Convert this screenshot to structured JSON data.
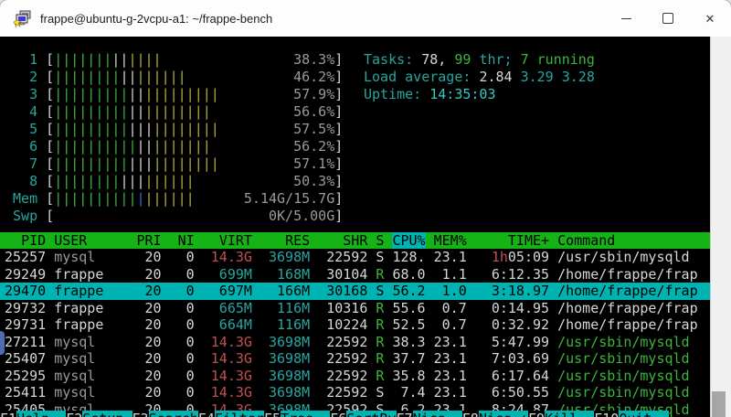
{
  "window": {
    "title": "frappe@ubuntu-g-2vcpu-a1: ~/frappe-bench",
    "controls": {
      "minimize": "minimize",
      "maximize": "maximize",
      "close": "✕"
    }
  },
  "colors": {
    "header_bg": "#16b316",
    "sort_bg": "#00b3b3",
    "highlight_bg": "#00b3b3",
    "cyan_text": "#27a5a0",
    "green_text": "#3cb43c",
    "red_text": "#c05050",
    "bar_green": "#2e9b2e",
    "bar_red": "#c23b3b",
    "bar_yellow": "#b3ad3d",
    "bar_blue": "#4169e1"
  },
  "htop": {
    "meters": [
      {
        "label": "1",
        "bar": [
          [
            "g",
            7
          ],
          [
            "r",
            2
          ],
          [
            "y",
            4
          ]
        ],
        "value": "38.3%"
      },
      {
        "label": "2",
        "bar": [
          [
            "g",
            8
          ],
          [
            "r",
            2
          ],
          [
            "y",
            6
          ]
        ],
        "value": "46.2%"
      },
      {
        "label": "3",
        "bar": [
          [
            "g",
            9
          ],
          [
            "r",
            2
          ],
          [
            "y",
            9
          ]
        ],
        "value": "57.9%"
      },
      {
        "label": "4",
        "bar": [
          [
            "g",
            9
          ],
          [
            "r",
            2
          ],
          [
            "y",
            8
          ]
        ],
        "value": "56.6%"
      },
      {
        "label": "5",
        "bar": [
          [
            "g",
            9
          ],
          [
            "r",
            3
          ],
          [
            "y",
            8
          ]
        ],
        "value": "57.5%"
      },
      {
        "label": "6",
        "bar": [
          [
            "g",
            10
          ],
          [
            "r",
            2
          ],
          [
            "y",
            7
          ]
        ],
        "value": "56.2%"
      },
      {
        "label": "7",
        "bar": [
          [
            "g",
            9
          ],
          [
            "r",
            3
          ],
          [
            "y",
            8
          ]
        ],
        "value": "57.1%"
      },
      {
        "label": "8",
        "bar": [
          [
            "g",
            8
          ],
          [
            "r",
            3
          ],
          [
            "y",
            6
          ]
        ],
        "value": "50.3%"
      },
      {
        "label": "Mem",
        "bar": [
          [
            "g",
            10
          ],
          [
            "bl",
            1
          ],
          [
            "y",
            6
          ]
        ],
        "value": "5.14G/15.7G"
      },
      {
        "label": "Swp",
        "bar": [],
        "value": "0K/5.00G"
      }
    ],
    "info": [
      [
        {
          "t": "Tasks: ",
          "c": "cy"
        },
        {
          "t": "78, ",
          "c": "w"
        },
        {
          "t": "99 ",
          "c": "g"
        },
        {
          "t": "thr",
          "c": "cy"
        },
        {
          "t": "; ",
          "c": "cy"
        },
        {
          "t": "7 running",
          "c": "g"
        }
      ],
      [
        {
          "t": "Load average: ",
          "c": "cy"
        },
        {
          "t": "2.84 ",
          "c": "w"
        },
        {
          "t": "3.29 ",
          "c": "cy"
        },
        {
          "t": "3.28",
          "c": "cy"
        }
      ],
      [
        {
          "t": "Uptime: ",
          "c": "cy"
        },
        {
          "t": "14:35:03",
          "c": "cyb"
        }
      ]
    ],
    "table": {
      "columns": [
        {
          "key": "pid",
          "label": "PID",
          "w": 5,
          "a": "r",
          "gap": 0
        },
        {
          "key": "user",
          "label": "USER",
          "w": 10,
          "a": "l",
          "gap": 1
        },
        {
          "key": "pri",
          "label": "PRI",
          "w": 3,
          "a": "r",
          "gap": 0
        },
        {
          "key": "ni",
          "label": "NI",
          "w": 4,
          "a": "r",
          "gap": 0
        },
        {
          "key": "virt",
          "label": "VIRT",
          "w": 7,
          "a": "r",
          "gap": 0
        },
        {
          "key": "res",
          "label": "RES",
          "w": 7,
          "a": "r",
          "gap": 0
        },
        {
          "key": "shr",
          "label": "SHR",
          "w": 7,
          "a": "r",
          "gap": 0
        },
        {
          "key": "s",
          "label": "S",
          "w": 2,
          "a": "r",
          "gap": 0
        },
        {
          "key": "cpu",
          "label": "CPU%",
          "w": 5,
          "a": "r",
          "gap": 0,
          "sort": true
        },
        {
          "key": "mem",
          "label": "MEM%",
          "w": 5,
          "a": "r",
          "gap": 0
        },
        {
          "key": "time",
          "label": "TIME+",
          "w": 10,
          "a": "r",
          "gap": 0
        },
        {
          "key": "cmd",
          "label": "Command",
          "w": 0,
          "a": "l",
          "gap": 1
        }
      ],
      "rows": [
        {
          "hl": false,
          "cells": [
            {
              "v": "25257",
              "c": "w"
            },
            {
              "v": "mysql",
              "c": "dim"
            },
            {
              "v": "20",
              "c": "w"
            },
            {
              "v": "0",
              "c": "w"
            },
            {
              "v": "14.3G",
              "c": "red"
            },
            {
              "v": "3698M",
              "c": "cy"
            },
            {
              "v": "22592",
              "c": "w"
            },
            {
              "v": "S",
              "c": "w"
            },
            {
              "v": "128.",
              "c": "w"
            },
            {
              "v": "23.1",
              "c": "w"
            },
            {
              "v": "05:09",
              "c": "w",
              "pre": "1h",
              "prec": "red"
            },
            {
              "v": "/usr/sbin/mysqld",
              "c": "w"
            }
          ]
        },
        {
          "hl": false,
          "cells": [
            {
              "v": "29249",
              "c": "w"
            },
            {
              "v": "frappe",
              "c": "w"
            },
            {
              "v": "20",
              "c": "w"
            },
            {
              "v": "0",
              "c": "w"
            },
            {
              "v": "699M",
              "c": "cy"
            },
            {
              "v": "168M",
              "c": "cy"
            },
            {
              "v": "30104",
              "c": "w"
            },
            {
              "v": "R",
              "c": "g"
            },
            {
              "v": "68.0",
              "c": "w"
            },
            {
              "v": "1.1",
              "c": "w"
            },
            {
              "v": "6:12.35",
              "c": "w"
            },
            {
              "v": "/home/frappe/frap",
              "c": "w"
            }
          ]
        },
        {
          "hl": true,
          "cells": [
            {
              "v": "29470",
              "c": "w"
            },
            {
              "v": "frappe",
              "c": "w"
            },
            {
              "v": "20",
              "c": "w"
            },
            {
              "v": "0",
              "c": "w"
            },
            {
              "v": "697M",
              "c": "w"
            },
            {
              "v": "166M",
              "c": "w"
            },
            {
              "v": "30168",
              "c": "w"
            },
            {
              "v": "S",
              "c": "w"
            },
            {
              "v": "56.2",
              "c": "w"
            },
            {
              "v": "1.0",
              "c": "w"
            },
            {
              "v": "3:18.97",
              "c": "w"
            },
            {
              "v": "/home/frappe/frap",
              "c": "w"
            }
          ]
        },
        {
          "hl": false,
          "cells": [
            {
              "v": "29732",
              "c": "w"
            },
            {
              "v": "frappe",
              "c": "w"
            },
            {
              "v": "20",
              "c": "w"
            },
            {
              "v": "0",
              "c": "w"
            },
            {
              "v": "665M",
              "c": "cy"
            },
            {
              "v": "116M",
              "c": "cy"
            },
            {
              "v": "10316",
              "c": "w"
            },
            {
              "v": "R",
              "c": "g"
            },
            {
              "v": "55.6",
              "c": "w"
            },
            {
              "v": "0.7",
              "c": "w"
            },
            {
              "v": "0:14.95",
              "c": "w"
            },
            {
              "v": "/home/frappe/frap",
              "c": "w"
            }
          ]
        },
        {
          "hl": false,
          "cells": [
            {
              "v": "29731",
              "c": "w"
            },
            {
              "v": "frappe",
              "c": "w"
            },
            {
              "v": "20",
              "c": "w"
            },
            {
              "v": "0",
              "c": "w"
            },
            {
              "v": "664M",
              "c": "cy"
            },
            {
              "v": "116M",
              "c": "cy"
            },
            {
              "v": "10224",
              "c": "w"
            },
            {
              "v": "R",
              "c": "g"
            },
            {
              "v": "52.5",
              "c": "w"
            },
            {
              "v": "0.7",
              "c": "w"
            },
            {
              "v": "0:32.92",
              "c": "w"
            },
            {
              "v": "/home/frappe/frap",
              "c": "w"
            }
          ]
        },
        {
          "hl": false,
          "cells": [
            {
              "v": "27211",
              "c": "w"
            },
            {
              "v": "mysql",
              "c": "dim"
            },
            {
              "v": "20",
              "c": "w"
            },
            {
              "v": "0",
              "c": "w"
            },
            {
              "v": "14.3G",
              "c": "red"
            },
            {
              "v": "3698M",
              "c": "cy"
            },
            {
              "v": "22592",
              "c": "w"
            },
            {
              "v": "R",
              "c": "g"
            },
            {
              "v": "38.3",
              "c": "w"
            },
            {
              "v": "23.1",
              "c": "w"
            },
            {
              "v": "5:47.99",
              "c": "w"
            },
            {
              "v": "/usr/sbin/mysqld",
              "c": "g"
            }
          ]
        },
        {
          "hl": false,
          "cells": [
            {
              "v": "25407",
              "c": "w"
            },
            {
              "v": "mysql",
              "c": "dim"
            },
            {
              "v": "20",
              "c": "w"
            },
            {
              "v": "0",
              "c": "w"
            },
            {
              "v": "14.3G",
              "c": "red"
            },
            {
              "v": "3698M",
              "c": "cy"
            },
            {
              "v": "22592",
              "c": "w"
            },
            {
              "v": "R",
              "c": "g"
            },
            {
              "v": "37.7",
              "c": "w"
            },
            {
              "v": "23.1",
              "c": "w"
            },
            {
              "v": "7:03.69",
              "c": "w"
            },
            {
              "v": "/usr/sbin/mysqld",
              "c": "g"
            }
          ]
        },
        {
          "hl": false,
          "cells": [
            {
              "v": "25295",
              "c": "w"
            },
            {
              "v": "mysql",
              "c": "dim"
            },
            {
              "v": "20",
              "c": "w"
            },
            {
              "v": "0",
              "c": "w"
            },
            {
              "v": "14.3G",
              "c": "red"
            },
            {
              "v": "3698M",
              "c": "cy"
            },
            {
              "v": "22592",
              "c": "w"
            },
            {
              "v": "R",
              "c": "g"
            },
            {
              "v": "35.8",
              "c": "w"
            },
            {
              "v": "23.1",
              "c": "w"
            },
            {
              "v": "6:17.64",
              "c": "w"
            },
            {
              "v": "/usr/sbin/mysqld",
              "c": "g"
            }
          ]
        },
        {
          "hl": false,
          "cells": [
            {
              "v": "25411",
              "c": "w"
            },
            {
              "v": "mysql",
              "c": "dim"
            },
            {
              "v": "20",
              "c": "w"
            },
            {
              "v": "0",
              "c": "w"
            },
            {
              "v": "14.3G",
              "c": "red"
            },
            {
              "v": "3698M",
              "c": "cy"
            },
            {
              "v": "22592",
              "c": "w"
            },
            {
              "v": "S",
              "c": "w"
            },
            {
              "v": "7.4",
              "c": "w"
            },
            {
              "v": "23.1",
              "c": "w"
            },
            {
              "v": "6:50.55",
              "c": "w"
            },
            {
              "v": "/usr/sbin/mysqld",
              "c": "g"
            }
          ]
        },
        {
          "hl": false,
          "cells": [
            {
              "v": "25405",
              "c": "w"
            },
            {
              "v": "mysql",
              "c": "dim"
            },
            {
              "v": "20",
              "c": "w"
            },
            {
              "v": "0",
              "c": "w"
            },
            {
              "v": "14.3G",
              "c": "red"
            },
            {
              "v": "3698M",
              "c": "cy"
            },
            {
              "v": "22592",
              "c": "w"
            },
            {
              "v": "S",
              "c": "w"
            },
            {
              "v": "6.2",
              "c": "w"
            },
            {
              "v": "23.1",
              "c": "w"
            },
            {
              "v": "8:24.87",
              "c": "w"
            },
            {
              "v": "/usr/sbin/mysqld",
              "c": "g"
            }
          ]
        }
      ]
    },
    "fkeys": [
      {
        "key": "F1",
        "label": "Help  "
      },
      {
        "key": "F2",
        "label": "Setup "
      },
      {
        "key": "F3",
        "label": "Search"
      },
      {
        "key": "F4",
        "label": "Filter"
      },
      {
        "key": "F5",
        "label": "Tree  "
      },
      {
        "key": "F6",
        "label": "SortBy"
      },
      {
        "key": "F7",
        "label": "Nice -"
      },
      {
        "key": "F8",
        "label": "Nice +"
      },
      {
        "key": "F9",
        "label": "Kill  "
      },
      {
        "key": "F10",
        "label": "Quit  "
      }
    ]
  }
}
